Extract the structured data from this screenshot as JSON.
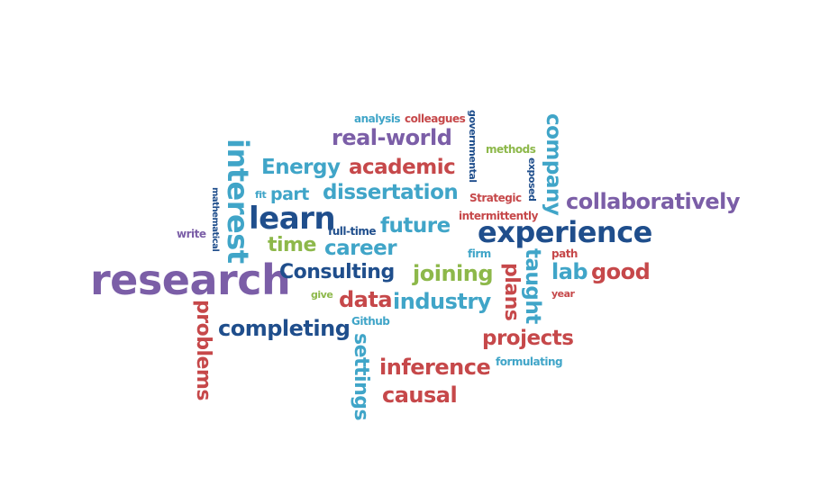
{
  "colors": {
    "purple": "#7b5ea7",
    "navy": "#1f4e8c",
    "teal": "#40a5c8",
    "red": "#c6484a",
    "green": "#8db84a"
  },
  "words": [
    {
      "id": "research",
      "text": "research",
      "color": "purple"
    },
    {
      "id": "experience",
      "text": "experience",
      "color": "navy"
    },
    {
      "id": "learn",
      "text": "learn",
      "color": "navy"
    },
    {
      "id": "interest",
      "text": "interest",
      "color": "teal"
    },
    {
      "id": "collaboratively",
      "text": "collaboratively",
      "color": "purple"
    },
    {
      "id": "consulting",
      "text": "Consulting",
      "color": "navy"
    },
    {
      "id": "real-world",
      "text": "real-world",
      "color": "purple"
    },
    {
      "id": "energy",
      "text": "Energy",
      "color": "teal"
    },
    {
      "id": "academic",
      "text": "academic",
      "color": "red"
    },
    {
      "id": "dissertation",
      "text": "dissertation",
      "color": "teal"
    },
    {
      "id": "part",
      "text": "part",
      "color": "teal"
    },
    {
      "id": "future",
      "text": "future",
      "color": "teal"
    },
    {
      "id": "career",
      "text": "career",
      "color": "teal"
    },
    {
      "id": "time",
      "text": "time",
      "color": "green"
    },
    {
      "id": "joining",
      "text": "joining",
      "color": "green"
    },
    {
      "id": "data",
      "text": "data",
      "color": "red"
    },
    {
      "id": "industry",
      "text": "industry",
      "color": "teal"
    },
    {
      "id": "completing",
      "text": "completing",
      "color": "navy"
    },
    {
      "id": "projects",
      "text": "projects",
      "color": "red"
    },
    {
      "id": "inference",
      "text": "inference",
      "color": "red"
    },
    {
      "id": "causal",
      "text": "causal",
      "color": "red"
    },
    {
      "id": "lab",
      "text": "lab",
      "color": "teal"
    },
    {
      "id": "good",
      "text": "good",
      "color": "red"
    },
    {
      "id": "company",
      "text": "company",
      "color": "teal"
    },
    {
      "id": "taught",
      "text": "taught",
      "color": "teal"
    },
    {
      "id": "plans",
      "text": "plans",
      "color": "red"
    },
    {
      "id": "problems",
      "text": "problems",
      "color": "red"
    },
    {
      "id": "settings",
      "text": "settings",
      "color": "teal"
    },
    {
      "id": "analysis",
      "text": "analysis",
      "color": "teal"
    },
    {
      "id": "colleagues",
      "text": "colleagues",
      "color": "red"
    },
    {
      "id": "governmental",
      "text": "governmental",
      "color": "navy"
    },
    {
      "id": "methods",
      "text": "methods",
      "color": "green"
    },
    {
      "id": "exposed",
      "text": "exposed",
      "color": "navy"
    },
    {
      "id": "strategic",
      "text": "Strategic",
      "color": "red"
    },
    {
      "id": "intermittently",
      "text": "intermittently",
      "color": "red"
    },
    {
      "id": "mathematical",
      "text": "mathematical",
      "color": "navy"
    },
    {
      "id": "fit",
      "text": "fit",
      "color": "teal"
    },
    {
      "id": "write",
      "text": "write",
      "color": "purple"
    },
    {
      "id": "full-time",
      "text": "full-time",
      "color": "navy"
    },
    {
      "id": "firm",
      "text": "firm",
      "color": "teal"
    },
    {
      "id": "path",
      "text": "path",
      "color": "red"
    },
    {
      "id": "year",
      "text": "year",
      "color": "red"
    },
    {
      "id": "give",
      "text": "give",
      "color": "green"
    },
    {
      "id": "github",
      "text": "Github",
      "color": "teal"
    },
    {
      "id": "formulating",
      "text": "formulating",
      "color": "teal"
    }
  ]
}
